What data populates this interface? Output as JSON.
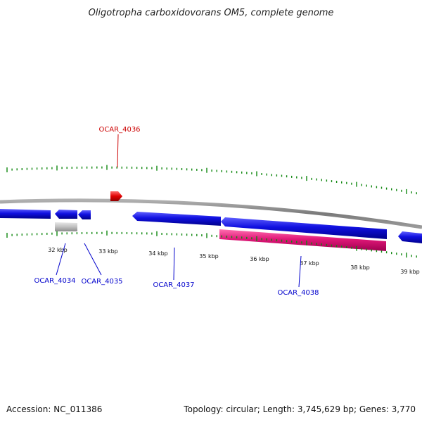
{
  "title": "Oligotropha carboxidovorans OM5, complete genome",
  "footer": {
    "accession": "Accession: NC_011386",
    "summary": "Topology: circular; Length: 3,745,629 bp; Genes: 3,770"
  },
  "colors": {
    "backbone": "#8a8a8a",
    "forward_gene": "#1010e0",
    "pseudo_gene": "#c0c0c0",
    "rna_gene": "#e01878",
    "small_feature": "#e00000",
    "ticks": "#118811",
    "label_blue": "#0000cc",
    "label_red": "#cc0000"
  },
  "tick_labels": [
    "32 kbp",
    "33 kbp",
    "34 kbp",
    "35 kbp",
    "36 kbp",
    "37 kbp",
    "38 kbp",
    "39 kbp"
  ],
  "gene_labels": [
    {
      "id": "OCAR_4034",
      "color": "blue"
    },
    {
      "id": "OCAR_4035",
      "color": "blue"
    },
    {
      "id": "OCAR_4036",
      "color": "red"
    },
    {
      "id": "OCAR_4037",
      "color": "blue"
    },
    {
      "id": "OCAR_4038",
      "color": "blue"
    }
  ]
}
